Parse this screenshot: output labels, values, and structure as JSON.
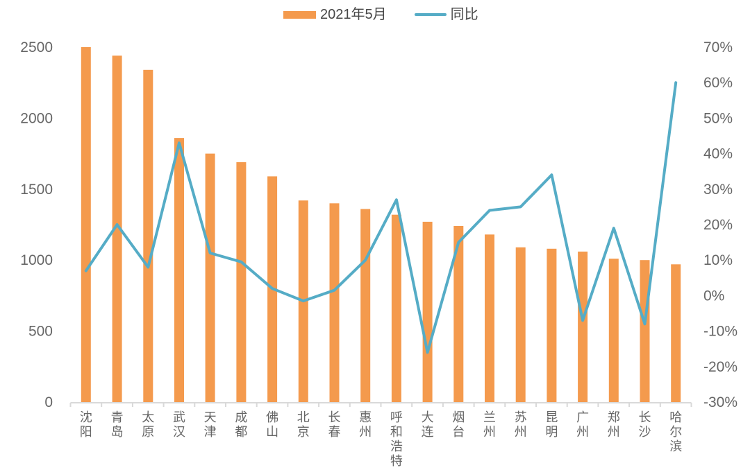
{
  "colors": {
    "bar": "#F49A4D",
    "line": "#55ACC6",
    "axis_line": "#D9D9D9",
    "axis_text": "#666666",
    "legend_text": "#474747",
    "background": "#FFFFFF"
  },
  "legend": {
    "items": [
      {
        "label": "2021年5月",
        "marker": "bar-swatch"
      },
      {
        "label": "同比",
        "marker": "line-swatch"
      }
    ]
  },
  "chart_data": {
    "type": "bar",
    "subtype": "combo-bar-line-dual-axis",
    "title": "",
    "xlabel": "",
    "ylabel": "",
    "grid": false,
    "legend_position": "top",
    "categories": [
      "沈阳",
      "青岛",
      "太原",
      "武汉",
      "天津",
      "成都",
      "佛山",
      "北京",
      "长春",
      "惠州",
      "呼和浩特",
      "大连",
      "烟台",
      "兰州",
      "苏州",
      "昆明",
      "广州",
      "郑州",
      "长沙",
      "哈尔滨"
    ],
    "series": [
      {
        "name": "2021年5月",
        "type": "bar",
        "axis": "left",
        "color": "#F49A4D",
        "values": [
          2500,
          2440,
          2340,
          1860,
          1750,
          1690,
          1590,
          1420,
          1400,
          1360,
          1320,
          1270,
          1240,
          1180,
          1090,
          1080,
          1060,
          1010,
          1000,
          970
        ]
      },
      {
        "name": "同比",
        "type": "line",
        "axis": "right",
        "color": "#55ACC6",
        "values": [
          7,
          20,
          8,
          43,
          12,
          9.5,
          2,
          -1.5,
          1.5,
          10,
          27,
          -16,
          15,
          24,
          25,
          34,
          -7,
          19,
          -8,
          60
        ]
      }
    ],
    "left_axis": {
      "min": 0,
      "max": 2500,
      "step": 500,
      "ticks": [
        "0",
        "500",
        "1000",
        "1500",
        "2000",
        "2500"
      ]
    },
    "right_axis": {
      "min": -30,
      "max": 70,
      "step": 10,
      "ticks": [
        "-30%",
        "-20%",
        "-10%",
        "0%",
        "10%",
        "20%",
        "30%",
        "40%",
        "50%",
        "60%",
        "70%"
      ]
    }
  }
}
